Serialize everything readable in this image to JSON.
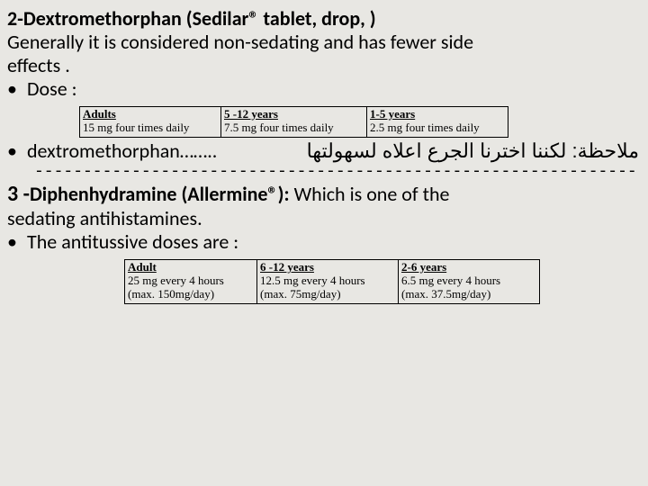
{
  "section2": {
    "title_bold": "2-Dextromethorphan (Sedilar® tablet, drop, )",
    "desc_line1": "Generally it is considered non-sedating and has fewer side",
    "desc_line2": "effects .",
    "dose_label": "Dose :",
    "table": {
      "c1h": "Adults",
      "c1v": "15 mg  four times daily",
      "c2h": "5 -12 years",
      "c2v": "7.5 mg  four times daily",
      "c3h": "1-5 years",
      "c3v": "2.5 mg  four times daily"
    },
    "note_left": "dextromethorphan……..",
    "note_right": "ملاحظة: لكننا اخترنا الجرع اعلاه لسهولتها"
  },
  "separator": "---------------------------------------------------------------------------",
  "section3": {
    "title_prefix": "3 -",
    "title_bold": "Diphenhydramine (Allermine®):",
    "title_rest": " Which is one of the",
    "line2": "sedating antihistamines.",
    "bullet": "The antitussive doses are :",
    "table": {
      "c1h": "Adult",
      "c1v1": "   25 mg every 4 hours",
      "c1v2": "(max. 150mg/day)",
      "c2h": "6 -12 years",
      "c2v1": "   12.5 mg every 4 hours",
      "c2v2": "(max. 75mg/day)",
      "c3h": "2-6 years",
      "c3v1": "6.5 mg every 4 hours",
      "c3v2": " (max. 37.5mg/day)"
    }
  }
}
